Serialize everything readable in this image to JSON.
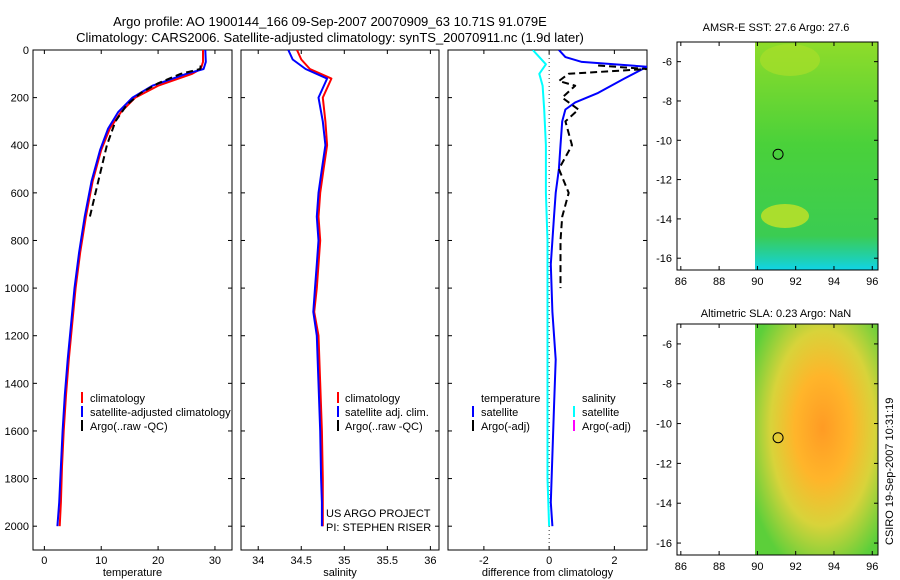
{
  "title": {
    "line1": "Argo profile: AO 1900144_166 09-Sep-2007 20070909_63 10.71S 91.079E",
    "line2": "Climatology: CARS2006. Satellite-adjusted climatology: synTS_20070911.nc (1.9d later)"
  },
  "colors": {
    "climatology": "#ff0000",
    "satellite": "#0000ff",
    "argo": "#000000",
    "temperature_diff": "#00ffff",
    "salinity_argo_adj": "#ff00ff"
  },
  "credit": "CSIRO 19-Sep-2007 10:31:19",
  "chart_data": [
    {
      "type": "line",
      "xlabel": "temperature",
      "ylabel": "",
      "ylim": [
        0,
        2100
      ],
      "y_reversed": true,
      "xlim": [
        -2,
        33
      ],
      "xticks": [
        "0",
        "10",
        "20",
        "30"
      ],
      "yticks": [
        "0",
        "200",
        "400",
        "600",
        "800",
        "1000",
        "1200",
        "1400",
        "1600",
        "1800",
        "2000"
      ],
      "legend_placement": "bottom-right",
      "legend": [
        "climatology",
        "satellite-adjusted climatology",
        "Argo(..raw -QC)"
      ],
      "series": [
        {
          "name": "climatology",
          "x": [
            27.9,
            27.9,
            27.5,
            26.0,
            20.0,
            16.0,
            13.5,
            11.5,
            10.0,
            8.5,
            7.3,
            6.3,
            5.5,
            4.9,
            4.3,
            3.8,
            3.4,
            3.1,
            2.9,
            2.7
          ],
          "y": [
            0,
            50,
            80,
            100,
            150,
            200,
            260,
            330,
            420,
            550,
            700,
            850,
            1000,
            1150,
            1300,
            1450,
            1600,
            1750,
            1900,
            2000
          ]
        },
        {
          "name": "satellite-adjusted climatology",
          "x": [
            28.3,
            28.4,
            28.0,
            25.0,
            19.0,
            15.5,
            13.0,
            11.2,
            9.8,
            8.3,
            7.1,
            6.1,
            5.3,
            4.7,
            4.1,
            3.6,
            3.2,
            2.9,
            2.6,
            2.3
          ],
          "y": [
            0,
            50,
            80,
            100,
            150,
            200,
            260,
            330,
            420,
            550,
            700,
            850,
            1000,
            1150,
            1300,
            1450,
            1600,
            1750,
            1900,
            2000
          ]
        },
        {
          "name": "Argo(..raw -QC)",
          "x": [
            27.5,
            27.4,
            24.0,
            20.0,
            17.0,
            14.5,
            12.5,
            11.0,
            10.0,
            9.0,
            8.0
          ],
          "y": [
            65,
            80,
            100,
            140,
            180,
            230,
            300,
            400,
            500,
            600,
            700
          ]
        }
      ]
    },
    {
      "type": "line",
      "xlabel": "salinity",
      "ylabel": "",
      "ylim": [
        0,
        2100
      ],
      "y_reversed": true,
      "xlim": [
        33.8,
        36.1
      ],
      "xticks": [
        "34",
        "34.5",
        "35",
        "35.5",
        "36"
      ],
      "legend_placement": "bottom-right",
      "legend": [
        "climatology",
        "satellite adj. clim.",
        "Argo(..raw -QC)"
      ],
      "annotation": [
        "US ARGO PROJECT",
        "PI: STEPHEN RISER"
      ],
      "series": [
        {
          "name": "climatology",
          "x": [
            34.45,
            34.5,
            34.6,
            34.85,
            34.75,
            34.78,
            34.8,
            34.76,
            34.72,
            34.7,
            34.72,
            34.7,
            34.68,
            34.65,
            34.7,
            34.72,
            34.74,
            34.75,
            34.75,
            34.75
          ],
          "y": [
            0,
            40,
            80,
            120,
            200,
            300,
            400,
            500,
            600,
            700,
            800,
            900,
            1000,
            1100,
            1200,
            1400,
            1600,
            1800,
            1900,
            2000
          ]
        },
        {
          "name": "satellite adj. clim.",
          "x": [
            34.35,
            34.4,
            34.55,
            34.8,
            34.7,
            34.75,
            34.78,
            34.74,
            34.7,
            34.68,
            34.7,
            34.68,
            34.66,
            34.64,
            34.68,
            34.7,
            34.72,
            34.73,
            34.74,
            34.74
          ],
          "y": [
            0,
            40,
            80,
            120,
            200,
            300,
            400,
            500,
            600,
            700,
            800,
            900,
            1000,
            1100,
            1200,
            1400,
            1600,
            1800,
            1900,
            2000
          ]
        }
      ]
    },
    {
      "type": "line",
      "xlabel": "difference from climatology",
      "ylabel": "",
      "ylim": [
        0,
        2100
      ],
      "y_reversed": true,
      "xlim": [
        -3.1,
        3.0
      ],
      "xticks": [
        "-2",
        "0",
        "2"
      ],
      "legend_placement": "bottom",
      "legend_groups": [
        {
          "title": "temperature",
          "items": [
            "satellite",
            "Argo(-adj)"
          ]
        },
        {
          "title": "salinity",
          "items": [
            "satellite",
            "Argo(-adj)"
          ]
        }
      ],
      "series": [
        {
          "name": "temperature satellite",
          "x": [
            0.3,
            0.5,
            1.0,
            3.0,
            2.3,
            1.5,
            0.8,
            0.5,
            0.4,
            0.35,
            0.3,
            0.2,
            0.15,
            0.1,
            0.05,
            0.1,
            0.2,
            0.15,
            0.1,
            0.05,
            0.1
          ],
          "y": [
            0,
            30,
            50,
            70,
            120,
            180,
            220,
            250,
            300,
            400,
            500,
            600,
            700,
            800,
            900,
            1100,
            1300,
            1500,
            1700,
            1900,
            2000
          ]
        },
        {
          "name": "salinity satellite",
          "x": [
            -0.5,
            -0.3,
            -0.1,
            -0.3,
            -0.2,
            -0.15,
            -0.1,
            -0.1,
            -0.05,
            -0.05,
            -0.05,
            -0.05,
            -0.05,
            0.0
          ],
          "y": [
            0,
            30,
            60,
            100,
            150,
            250,
            400,
            600,
            800,
            1000,
            1200,
            1500,
            1800,
            2000
          ]
        },
        {
          "name": "temperature Argo(-adj)",
          "x": [
            1.5,
            3.0,
            0.6,
            0.3,
            0.8,
            0.4,
            0.9,
            0.5,
            0.7,
            0.3,
            0.6,
            0.4,
            0.35,
            0.35
          ],
          "y": [
            65,
            80,
            100,
            130,
            150,
            200,
            250,
            300,
            400,
            500,
            600,
            700,
            800,
            1000
          ]
        }
      ]
    },
    {
      "type": "heatmap",
      "title": "AMSR-E SST: 27.6 Argo: 27.6",
      "xlim": [
        85.8,
        96.3
      ],
      "ylim": [
        -16.6,
        -5.0
      ],
      "xticks": [
        "86",
        "88",
        "90",
        "92",
        "94",
        "96"
      ],
      "yticks": [
        "-6",
        "-8",
        "-10",
        "-12",
        "-14",
        "-16"
      ],
      "marker": {
        "lon": 91.08,
        "lat": -10.71
      }
    },
    {
      "type": "heatmap",
      "title": "Altimetric SLA: 0.23 Argo: NaN",
      "xlim": [
        85.8,
        96.3
      ],
      "ylim": [
        -16.6,
        -5.0
      ],
      "xticks": [
        "86",
        "88",
        "90",
        "92",
        "94",
        "96"
      ],
      "yticks": [
        "-6",
        "-8",
        "-10",
        "-12",
        "-14",
        "-16"
      ],
      "marker": {
        "lon": 91.08,
        "lat": -10.71
      }
    }
  ]
}
